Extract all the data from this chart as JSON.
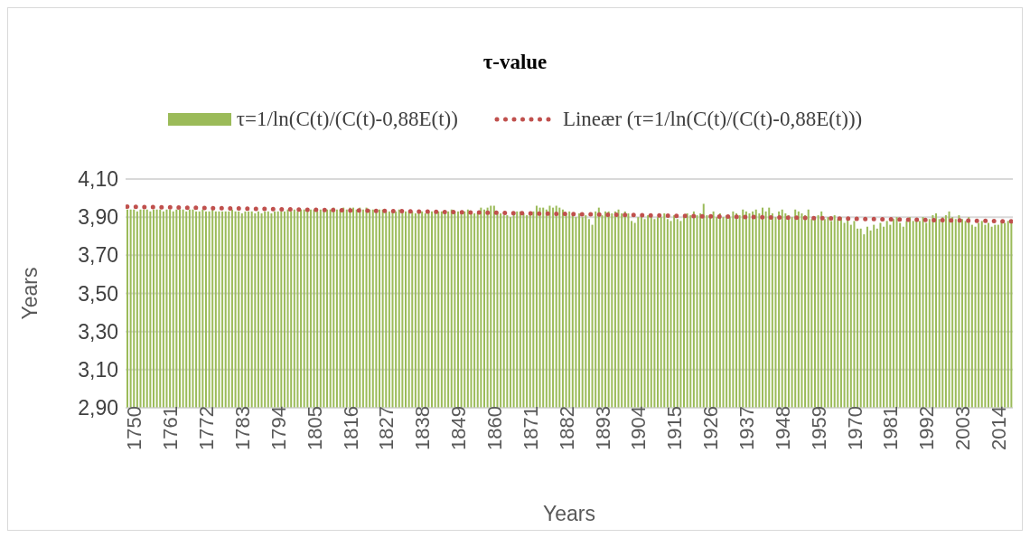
{
  "chart_data": {
    "type": "bar",
    "title": "τ-value",
    "xlabel": "Years",
    "ylabel": "Years",
    "x": [
      1750,
      1751,
      1752,
      1753,
      1754,
      1755,
      1756,
      1757,
      1758,
      1759,
      1760,
      1761,
      1762,
      1763,
      1764,
      1765,
      1766,
      1767,
      1768,
      1769,
      1770,
      1771,
      1772,
      1773,
      1774,
      1775,
      1776,
      1777,
      1778,
      1779,
      1780,
      1781,
      1782,
      1783,
      1784,
      1785,
      1786,
      1787,
      1788,
      1789,
      1790,
      1791,
      1792,
      1793,
      1794,
      1795,
      1796,
      1797,
      1798,
      1799,
      1800,
      1801,
      1802,
      1803,
      1804,
      1805,
      1806,
      1807,
      1808,
      1809,
      1810,
      1811,
      1812,
      1813,
      1814,
      1815,
      1816,
      1817,
      1818,
      1819,
      1820,
      1821,
      1822,
      1823,
      1824,
      1825,
      1826,
      1827,
      1828,
      1829,
      1830,
      1831,
      1832,
      1833,
      1834,
      1835,
      1836,
      1837,
      1838,
      1839,
      1840,
      1841,
      1842,
      1843,
      1844,
      1845,
      1846,
      1847,
      1848,
      1849,
      1850,
      1851,
      1852,
      1853,
      1854,
      1855,
      1856,
      1857,
      1858,
      1859,
      1860,
      1861,
      1862,
      1863,
      1864,
      1865,
      1866,
      1867,
      1868,
      1869,
      1870,
      1871,
      1872,
      1873,
      1874,
      1875,
      1876,
      1877,
      1878,
      1879,
      1880,
      1881,
      1882,
      1883,
      1884,
      1885,
      1886,
      1887,
      1888,
      1889,
      1890,
      1891,
      1892,
      1893,
      1894,
      1895,
      1896,
      1897,
      1898,
      1899,
      1900,
      1901,
      1902,
      1903,
      1904,
      1905,
      1906,
      1907,
      1908,
      1909,
      1910,
      1911,
      1912,
      1913,
      1914,
      1915,
      1916,
      1917,
      1918,
      1919,
      1920,
      1921,
      1922,
      1923,
      1924,
      1925,
      1926,
      1927,
      1928,
      1929,
      1930,
      1931,
      1932,
      1933,
      1934,
      1935,
      1936,
      1937,
      1938,
      1939,
      1940,
      1941,
      1942,
      1943,
      1944,
      1945,
      1946,
      1947,
      1948,
      1949,
      1950,
      1951,
      1952,
      1953,
      1954,
      1955,
      1956,
      1957,
      1958,
      1959,
      1960,
      1961,
      1962,
      1963,
      1964,
      1965,
      1966,
      1967,
      1968,
      1969,
      1970,
      1971,
      1972,
      1973,
      1974,
      1975,
      1976,
      1977,
      1978,
      1979,
      1980,
      1981,
      1982,
      1983,
      1984,
      1985,
      1986,
      1987,
      1988,
      1989,
      1990,
      1991,
      1992,
      1993,
      1994,
      1995,
      1996,
      1997,
      1998,
      1999,
      2000,
      2001,
      2002,
      2003,
      2004,
      2005,
      2006,
      2007,
      2008,
      2009,
      2010,
      2011,
      2012,
      2013,
      2014,
      2015,
      2016,
      2017,
      2018,
      2019,
      2020
    ],
    "series": [
      {
        "name": "τ=1/ln(C(t)/(C(t)-0,88E(t))",
        "color": "#9bbb59",
        "values": [
          3.94,
          3.94,
          3.94,
          3.93,
          3.94,
          3.94,
          3.94,
          3.93,
          3.94,
          3.94,
          3.94,
          3.93,
          3.94,
          3.94,
          3.93,
          3.94,
          3.94,
          3.94,
          3.93,
          3.94,
          3.94,
          3.93,
          3.93,
          3.94,
          3.93,
          3.93,
          3.94,
          3.93,
          3.93,
          3.93,
          3.93,
          3.93,
          3.94,
          3.93,
          3.93,
          3.92,
          3.93,
          3.93,
          3.93,
          3.92,
          3.93,
          3.92,
          3.93,
          3.93,
          3.92,
          3.93,
          3.93,
          3.93,
          3.93,
          3.94,
          3.93,
          3.94,
          3.93,
          3.94,
          3.94,
          3.93,
          3.94,
          3.94,
          3.93,
          3.94,
          3.94,
          3.94,
          3.94,
          3.95,
          3.94,
          3.94,
          3.95,
          3.94,
          3.95,
          3.95,
          3.94,
          3.95,
          3.94,
          3.95,
          3.94,
          3.94,
          3.93,
          3.94,
          3.94,
          3.93,
          3.93,
          3.93,
          3.93,
          3.94,
          3.93,
          3.93,
          3.93,
          3.93,
          3.92,
          3.93,
          3.93,
          3.92,
          3.93,
          3.93,
          3.93,
          3.93,
          3.93,
          3.92,
          3.93,
          3.94,
          3.93,
          3.93,
          3.92,
          3.93,
          3.94,
          3.93,
          3.92,
          3.92,
          3.95,
          3.94,
          3.95,
          3.96,
          3.96,
          3.93,
          3.92,
          3.91,
          3.91,
          3.9,
          3.92,
          3.93,
          3.93,
          3.92,
          3.91,
          3.92,
          3.93,
          3.96,
          3.95,
          3.95,
          3.94,
          3.96,
          3.95,
          3.96,
          3.95,
          3.94,
          3.92,
          3.93,
          3.91,
          3.9,
          3.92,
          3.9,
          3.91,
          3.89,
          3.86,
          3.93,
          3.95,
          3.91,
          3.93,
          3.93,
          3.92,
          3.93,
          3.94,
          3.92,
          3.93,
          3.92,
          3.88,
          3.87,
          3.9,
          3.91,
          3.89,
          3.91,
          3.91,
          3.89,
          3.9,
          3.9,
          3.92,
          3.89,
          3.88,
          3.91,
          3.89,
          3.88,
          3.91,
          3.92,
          3.91,
          3.93,
          3.91,
          3.92,
          3.97,
          3.91,
          3.9,
          3.93,
          3.9,
          3.92,
          3.9,
          3.91,
          3.9,
          3.93,
          3.92,
          3.91,
          3.94,
          3.93,
          3.92,
          3.93,
          3.94,
          3.92,
          3.95,
          3.93,
          3.95,
          3.92,
          3.9,
          3.93,
          3.94,
          3.92,
          3.91,
          3.9,
          3.94,
          3.93,
          3.92,
          3.91,
          3.94,
          3.89,
          3.9,
          3.91,
          3.93,
          3.89,
          3.9,
          3.88,
          3.91,
          3.89,
          3.9,
          3.87,
          3.89,
          3.86,
          3.88,
          3.84,
          3.84,
          3.81,
          3.85,
          3.83,
          3.86,
          3.84,
          3.87,
          3.85,
          3.88,
          3.86,
          3.89,
          3.9,
          3.87,
          3.85,
          3.88,
          3.9,
          3.88,
          3.89,
          3.88,
          3.9,
          3.87,
          3.89,
          3.91,
          3.92,
          3.89,
          3.9,
          3.91,
          3.93,
          3.9,
          3.89,
          3.91,
          3.89,
          3.88,
          3.9,
          3.86,
          3.85,
          3.87,
          3.88,
          3.86,
          3.87,
          3.85,
          3.86,
          3.86,
          3.88,
          3.87,
          3.88,
          3.87
        ]
      },
      {
        "name": "Lineær (τ=1/ln(C(t)/(C(t)-0,88E(t)))",
        "type": "line",
        "color": "#c0504d",
        "line_style": "dotted",
        "x": [
          1750,
          2020
        ],
        "values": [
          3.955,
          3.878
        ]
      }
    ],
    "xlim": [
      1749.5,
      2020.5
    ],
    "xticks": [
      1750,
      1761,
      1772,
      1783,
      1794,
      1805,
      1816,
      1827,
      1838,
      1849,
      1860,
      1871,
      1882,
      1893,
      1904,
      1915,
      1926,
      1937,
      1948,
      1959,
      1970,
      1981,
      1992,
      2003,
      2014
    ],
    "ylim": [
      2.9,
      4.1
    ],
    "yticks": [
      {
        "value": 2.9,
        "label": "2,90"
      },
      {
        "value": 3.1,
        "label": "3,10"
      },
      {
        "value": 3.3,
        "label": "3,30"
      },
      {
        "value": 3.5,
        "label": "3,50"
      },
      {
        "value": 3.7,
        "label": "3,70"
      },
      {
        "value": 3.9,
        "label": "3,90"
      },
      {
        "value": 4.1,
        "label": "4,10"
      }
    ],
    "grid": "y",
    "legend": "top"
  }
}
